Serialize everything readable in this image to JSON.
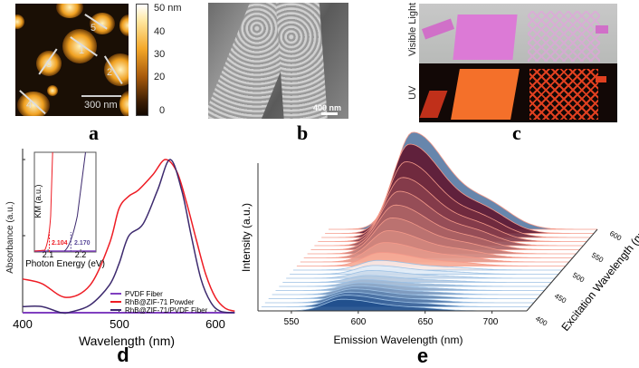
{
  "panels": {
    "a": {
      "label": "a",
      "colorbar_ticks": [
        "50 nm",
        "40",
        "30",
        "20",
        "0"
      ],
      "scale_bar": "300 nm",
      "profile_numbers": [
        "1",
        "2",
        "3",
        "4",
        "5"
      ]
    },
    "b": {
      "label": "b",
      "scale_bar": "400 nm"
    },
    "c": {
      "label": "c",
      "row_labels": [
        "Visible Light",
        "UV"
      ]
    },
    "d": {
      "label": "d"
    },
    "e": {
      "label": "e"
    }
  },
  "chart_data": [
    {
      "panel": "d",
      "type": "line",
      "xlabel": "Wavelength (nm)",
      "ylabel": "Absorbance (a.u.)",
      "xlim": [
        400,
        620
      ],
      "ylim": [
        0,
        1
      ],
      "xticks": [
        "400",
        "500",
        "600"
      ],
      "legend_position": "bottom-right",
      "series": [
        {
          "name": "PVDF Fiber",
          "color": "#8040c0",
          "x": [
            400,
            620
          ],
          "y": [
            0,
            0
          ]
        },
        {
          "name": "RhB@ZIF-71 Powder",
          "color": "#ee1c24",
          "x": [
            400,
            420,
            445,
            470,
            490,
            500,
            510,
            520,
            535,
            548,
            560,
            570,
            580,
            590,
            600,
            610,
            620
          ],
          "y": [
            0.22,
            0.19,
            0.1,
            0.18,
            0.45,
            0.68,
            0.76,
            0.8,
            0.9,
            1.0,
            0.92,
            0.72,
            0.48,
            0.25,
            0.1,
            0.03,
            0.01
          ]
        },
        {
          "name": "RhB@ZIF-71/PVDF Fiber",
          "color": "#3d2a6e",
          "x": [
            400,
            420,
            440,
            450,
            470,
            490,
            500,
            510,
            525,
            540,
            553,
            565,
            575,
            585,
            595,
            605,
            620
          ],
          "y": [
            0.04,
            0.04,
            0.0,
            0.005,
            0.05,
            0.18,
            0.32,
            0.5,
            0.58,
            0.8,
            1.0,
            0.8,
            0.5,
            0.22,
            0.07,
            0.01,
            0.0
          ]
        }
      ],
      "inset": {
        "xlabel": "Photon Energy (eV)",
        "ylabel": "KM (a.u.)",
        "xticks": [
          "2.1",
          "2.2"
        ],
        "xlim": [
          2.058,
          2.247
        ],
        "annotations": [
          {
            "text": "2.104",
            "x": 2.104,
            "color": "#ee1c24"
          },
          {
            "text": "2.170",
            "x": 2.17,
            "color": "#5a4a9a"
          }
        ]
      }
    },
    {
      "panel": "e",
      "type": "area",
      "xlabel": "Emission Wavelength (nm)",
      "ylabel": "Intensity (a.u.)",
      "zlabel": "Excitation Wavelength (nm)",
      "xlim": [
        525,
        726
      ],
      "xticks": [
        "550",
        "600",
        "650",
        "700"
      ],
      "zticks": [
        "400",
        "450",
        "500",
        "550",
        "600"
      ],
      "excitation_nm": [
        400,
        410,
        420,
        430,
        440,
        450,
        460,
        470,
        480,
        490,
        500,
        510,
        520,
        530,
        540,
        550,
        560,
        570,
        580,
        590,
        600
      ],
      "relative_peak_intensity": [
        0.12,
        0.12,
        0.11,
        0.1,
        0.09,
        0.08,
        0.07,
        0.07,
        0.08,
        0.09,
        0.1,
        0.14,
        0.2,
        0.28,
        0.37,
        0.46,
        0.56,
        0.66,
        0.78,
        0.92,
        1.0
      ],
      "peak_emission_nm": 588
    }
  ]
}
